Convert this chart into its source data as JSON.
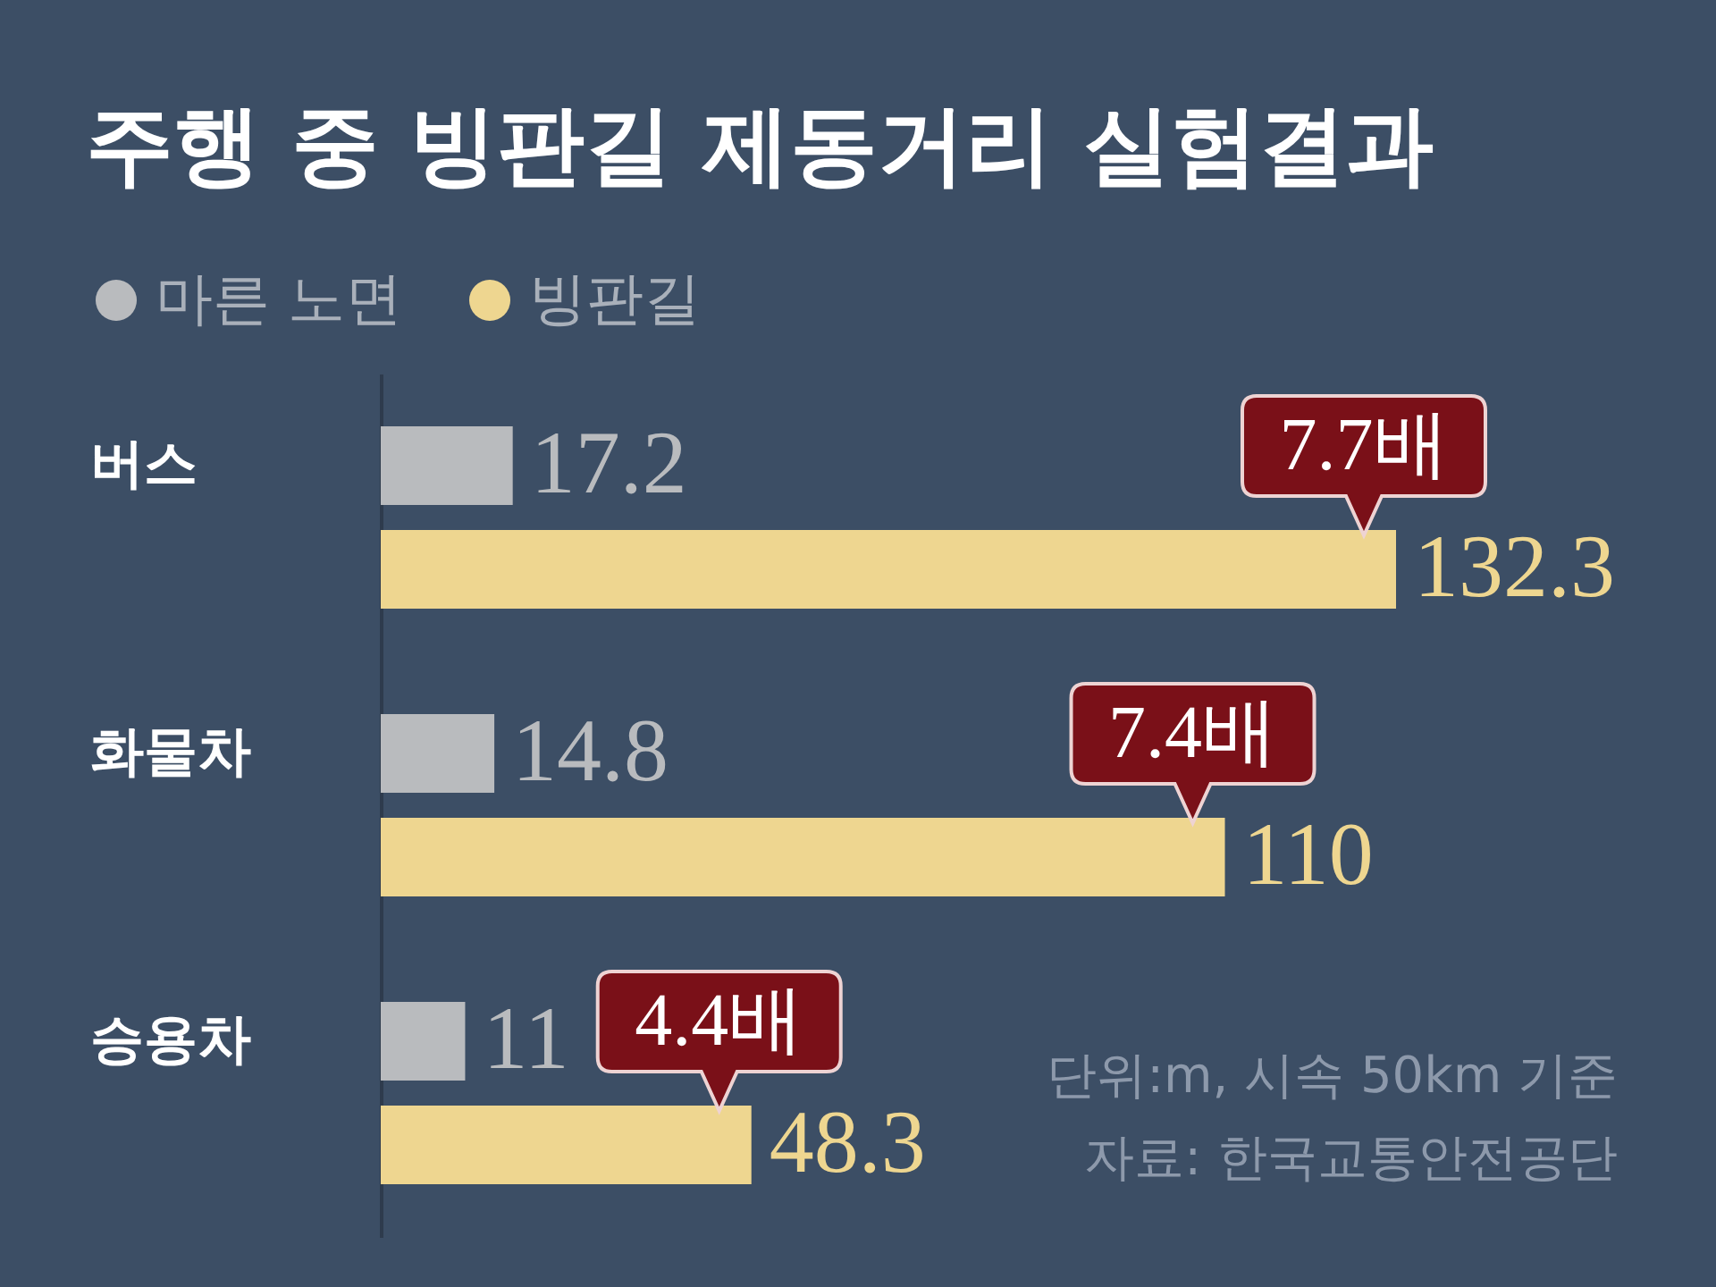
{
  "chart_data": {
    "type": "bar",
    "orientation": "horizontal",
    "title": "주행 중 빙판길 제동거리 실험결과",
    "categories": [
      "버스",
      "화물차",
      "승용차"
    ],
    "series": [
      {
        "name": "마른 노면",
        "color": "#b9bbbe",
        "values": [
          17.2,
          14.8,
          11
        ]
      },
      {
        "name": "빙판길",
        "color": "#eed690",
        "values": [
          132.3,
          110,
          48.3
        ]
      }
    ],
    "data_labels": true,
    "legend": "top left",
    "tick_labels": "y",
    "annotations": [
      {
        "text": "7.7배",
        "x": 132.3,
        "y": "버스"
      },
      {
        "text": "7.4배",
        "x": 110,
        "y": "화물차"
      },
      {
        "text": "4.4배",
        "x": 48.3,
        "y": "승용차"
      },
      "단위:m, 시속 50km 기준",
      "자료: 한국교통안전공단"
    ]
  }
}
